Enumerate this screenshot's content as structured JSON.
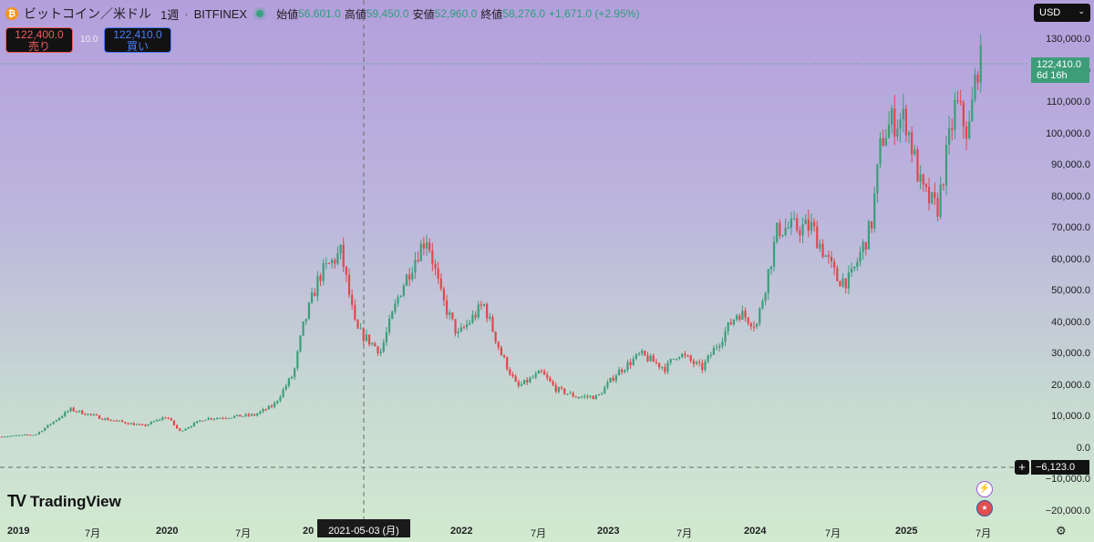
{
  "header": {
    "symbol": "ビットコイン／米ドル",
    "interval": "1週",
    "exchange": "BITFINEX",
    "labels": {
      "open": "始値",
      "high": "高値",
      "low": "安値",
      "close": "終値"
    },
    "open": "56,601.0",
    "high": "59,450.0",
    "low": "52,960.0",
    "close": "58,276.0",
    "change": "+1,671.0 (+2.95%)"
  },
  "trade": {
    "sell_price": "122,400.0",
    "sell_label": "売り",
    "buy_price": "122,410.0",
    "buy_label": "買い",
    "spread": "10.0"
  },
  "currency": "USD",
  "price_tag": {
    "price": "122,410.0",
    "countdown": "6d 16h"
  },
  "crosshair": {
    "price": "−6,123.0",
    "date": "2021-05-03 (月)"
  },
  "brand": "TradingView",
  "colors": {
    "up": "#3d9d7a",
    "down": "#e0474c",
    "price_tag": "#3d9d7a"
  },
  "icons": [
    "bitcoin-icon",
    "live-dot-icon",
    "plus-icon",
    "flash-icon",
    "us-flag-icon",
    "gear-icon",
    "chevron-down-icon"
  ],
  "chart_data": {
    "type": "candlestick",
    "y_ticks": [
      "130,000.0",
      "120,000.0",
      "110,000.0",
      "100,000.0",
      "90,000.0",
      "80,000.0",
      "70,000.0",
      "60,000.0",
      "50,000.0",
      "40,000.0",
      "30,000.0",
      "20,000.0",
      "10,000.0",
      "0.0",
      "−10,000.0",
      "−20,000.0"
    ],
    "x_ticks": [
      {
        "label": "2019",
        "year": true
      },
      {
        "label": "7月",
        "year": false
      },
      {
        "label": "2020",
        "year": true
      },
      {
        "label": "7月",
        "year": false
      },
      {
        "label": "20",
        "year": true
      },
      {
        "label": "2022",
        "year": true
      },
      {
        "label": "7月",
        "year": false
      },
      {
        "label": "2023",
        "year": true
      },
      {
        "label": "7月",
        "year": false
      },
      {
        "label": "2024",
        "year": true
      },
      {
        "label": "7月",
        "year": false
      },
      {
        "label": "2025",
        "year": true
      },
      {
        "label": "7月",
        "year": false
      }
    ],
    "ylim": [
      -20000,
      130000
    ],
    "x_range": [
      "2019-01-01",
      "2025-07-20"
    ],
    "anchors": [
      [
        "2019-01-01",
        3800
      ],
      [
        "2019-04-01",
        4500
      ],
      [
        "2019-06-24",
        12500
      ],
      [
        "2019-09-15",
        9500
      ],
      [
        "2019-12-20",
        7200
      ],
      [
        "2020-02-14",
        10300
      ],
      [
        "2020-03-16",
        5500
      ],
      [
        "2020-05-15",
        9500
      ],
      [
        "2020-09-15",
        10700
      ],
      [
        "2020-11-01",
        13800
      ],
      [
        "2020-12-20",
        24000
      ],
      [
        "2021-01-10",
        38000
      ],
      [
        "2021-02-20",
        55000
      ],
      [
        "2021-04-14",
        62500
      ],
      [
        "2021-05-20",
        38000
      ],
      [
        "2021-07-20",
        31000
      ],
      [
        "2021-09-05",
        50000
      ],
      [
        "2021-10-20",
        63000
      ],
      [
        "2021-11-10",
        67500
      ],
      [
        "2021-12-15",
        48000
      ],
      [
        "2022-01-24",
        36000
      ],
      [
        "2022-03-28",
        46000
      ],
      [
        "2022-05-10",
        30000
      ],
      [
        "2022-06-18",
        19500
      ],
      [
        "2022-08-15",
        24200
      ],
      [
        "2022-09-20",
        19000
      ],
      [
        "2022-11-09",
        16500
      ],
      [
        "2022-12-31",
        16500
      ],
      [
        "2023-02-15",
        24000
      ],
      [
        "2023-04-14",
        30000
      ],
      [
        "2023-06-15",
        25500
      ],
      [
        "2023-07-15",
        30500
      ],
      [
        "2023-09-11",
        25500
      ],
      [
        "2023-10-25",
        34500
      ],
      [
        "2023-12-08",
        43500
      ],
      [
        "2024-01-23",
        39500
      ],
      [
        "2024-03-14",
        70000
      ],
      [
        "2024-06-05",
        70500
      ],
      [
        "2024-08-05",
        54000
      ],
      [
        "2024-09-06",
        53500
      ],
      [
        "2024-10-28",
        71000
      ],
      [
        "2024-11-22",
        98500
      ],
      [
        "2024-12-17",
        104000
      ],
      [
        "2025-01-20",
        105000
      ],
      [
        "2025-02-28",
        82000
      ],
      [
        "2025-04-07",
        76000
      ],
      [
        "2025-05-22",
        110000
      ],
      [
        "2025-06-22",
        100000
      ],
      [
        "2025-07-14",
        122400
      ]
    ]
  }
}
